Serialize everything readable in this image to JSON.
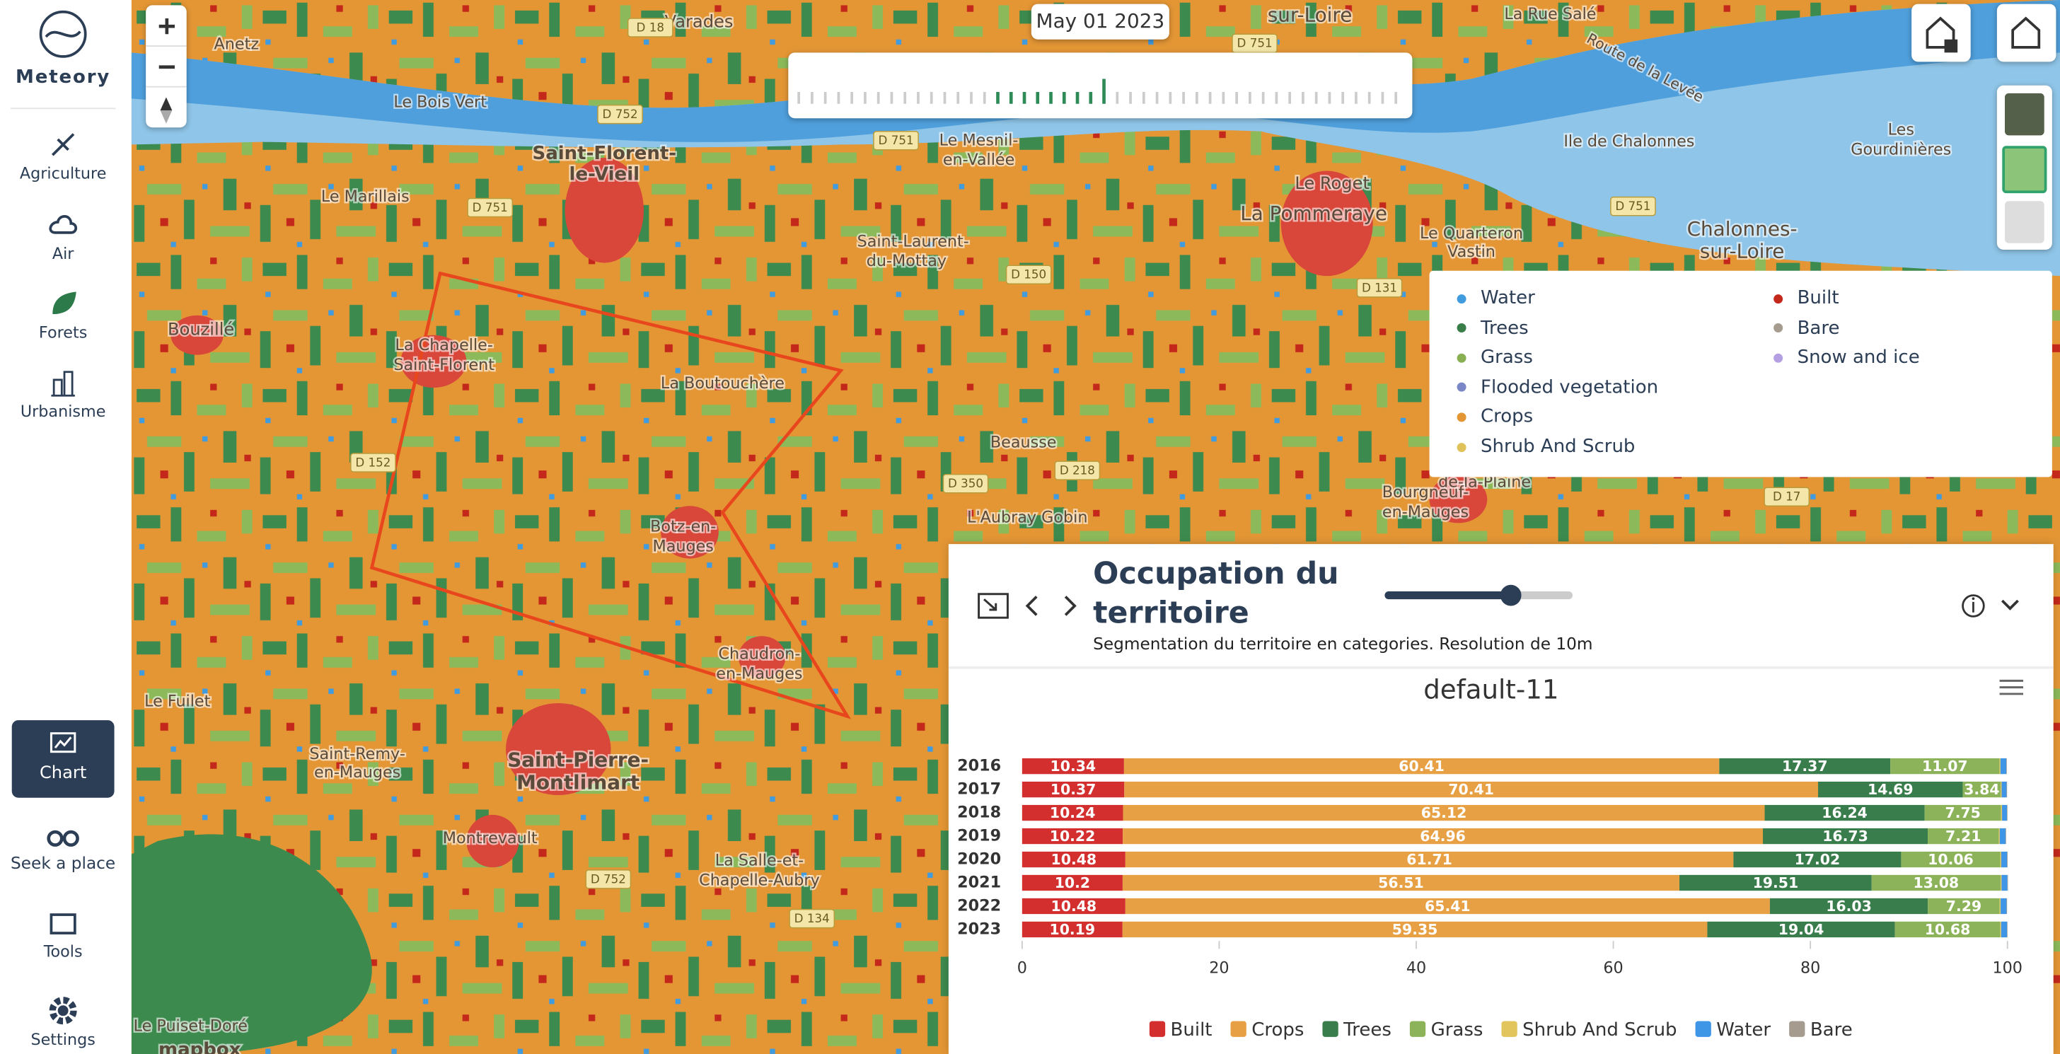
{
  "app": {
    "brand": "Meteory",
    "nav": [
      "Agriculture",
      "Air",
      "Forets",
      "Urbanisme",
      "Chart",
      "Seek a place",
      "Tools",
      "Settings"
    ],
    "date": "May 01 2023",
    "map_legend": {
      "items": [
        {
          "name": "Water",
          "color": "#419bdf"
        },
        {
          "name": "Trees",
          "color": "#397d49"
        },
        {
          "name": "Grass",
          "color": "#88b053"
        },
        {
          "name": "Flooded vegetation",
          "color": "#7a87c6"
        },
        {
          "name": "Crops",
          "color": "#e49635"
        },
        {
          "name": "Shrub And Scrub",
          "color": "#dfc35a"
        },
        {
          "name": "Built",
          "color": "#c4281b"
        },
        {
          "name": "Bare",
          "color": "#a59b8f"
        },
        {
          "name": "Snow and ice",
          "color": "#b39fe1"
        }
      ]
    },
    "panel": {
      "title_lines": [
        "Occupation du",
        "territoire"
      ],
      "subtitle": "Segmentation du territoire en categories. Resolution de 10m"
    },
    "map": {
      "labels": [
        "Varades",
        "Anetz",
        "Le Bois Vert",
        "Saint-Florent-",
        "le-Vieil",
        "Le Marillais",
        "Bouzillé",
        "La Chapelle-",
        "Saint-Florent",
        "La Boutouchère",
        "Botz-en-",
        "Mauges",
        "Chaudron-",
        "en-Mauges",
        "Le Fuilet",
        "Saint-Remy-",
        "en-Mauges",
        "Saint-Pierre-",
        "Montlimart",
        "Montrevault",
        "La Salle-et-",
        "Chapelle-Aubry",
        "Le Puiset-Doré",
        "Saint-Laurent-",
        "du-Mottay",
        "Le Mesnil-",
        "en-Vallée",
        "Le Roget",
        "La Pommeraye",
        "Le Quarteron",
        "Vastin",
        "Beausse",
        "L'Aubray Gobin",
        "Bourgneuf-",
        "en-Mauges",
        "sur-Loire",
        "La Rue Salé",
        "Route de la Levée",
        "Ile de Chalonnes",
        "Les",
        "Gourdinières",
        "Chalonnes-",
        "sur-Loire",
        "de-la-Plaine",
        "mapbox"
      ],
      "roads": [
        "D 18",
        "D 752",
        "D 751",
        "D 751",
        "D 150",
        "D 152",
        "D 350",
        "D 218",
        "D 751",
        "D 17",
        "D 131",
        "D 752",
        "D 134",
        "D 751"
      ]
    }
  },
  "chart_data": {
    "type": "bar",
    "orientation": "horizontal",
    "stacked": true,
    "title": "default-11",
    "categories": [
      "2016",
      "2017",
      "2018",
      "2019",
      "2020",
      "2021",
      "2022",
      "2023"
    ],
    "series": [
      {
        "name": "Built",
        "color": "#d32f2f",
        "values": [
          10.34,
          10.37,
          10.24,
          10.22,
          10.48,
          10.2,
          10.48,
          10.19
        ]
      },
      {
        "name": "Crops",
        "color": "#e8a044",
        "values": [
          60.41,
          70.41,
          65.12,
          64.96,
          61.71,
          56.51,
          65.41,
          59.35
        ]
      },
      {
        "name": "Trees",
        "color": "#3a7d4c",
        "values": [
          17.37,
          14.69,
          16.24,
          16.73,
          17.02,
          19.51,
          16.03,
          19.04
        ]
      },
      {
        "name": "Grass",
        "color": "#8db35a",
        "values": [
          11.07,
          3.84,
          7.75,
          7.21,
          10.06,
          13.08,
          7.29,
          10.68
        ]
      },
      {
        "name": "Shrub And Scrub",
        "color": "#e2c55c",
        "values": [
          0.1,
          0.1,
          0.1,
          0.1,
          0.1,
          0.1,
          0.1,
          0.1
        ]
      },
      {
        "name": "Water",
        "color": "#3f95e6",
        "values": [
          0.6,
          0.5,
          0.5,
          0.6,
          0.6,
          0.6,
          0.6,
          0.6
        ]
      },
      {
        "name": "Bare",
        "color": "#a59b8f",
        "values": [
          0.05,
          0.05,
          0.05,
          0.05,
          0.05,
          0.05,
          0.05,
          0.05
        ]
      }
    ],
    "xlim": [
      0,
      100
    ],
    "xticks": [
      0,
      20,
      40,
      60,
      80,
      100
    ],
    "grid": false,
    "legend": "bottom"
  }
}
